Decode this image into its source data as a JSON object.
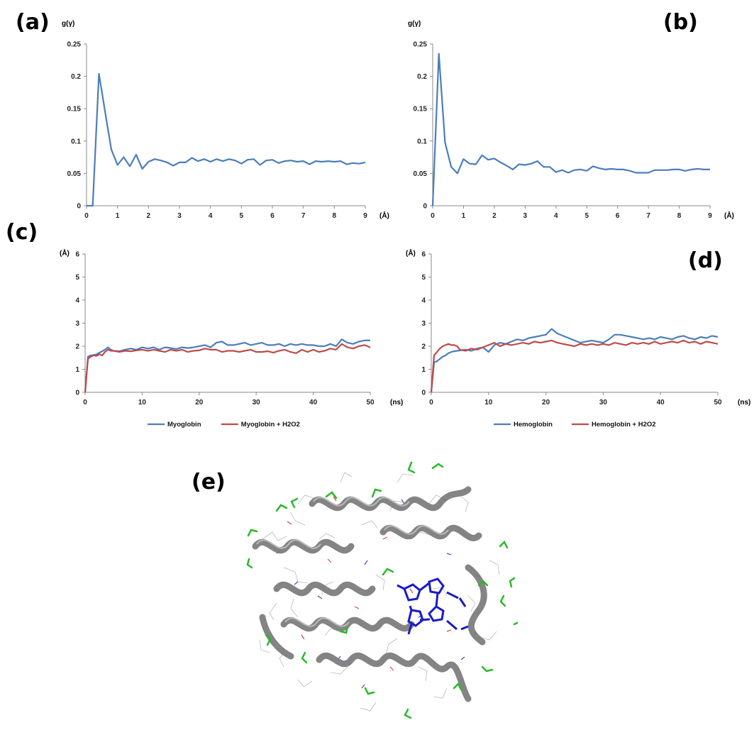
{
  "panels": {
    "a": "(a)",
    "b": "(b)",
    "c": "(c)",
    "d": "(d)",
    "e": "(e)"
  },
  "colors": {
    "blue": "#4a7ebb",
    "red": "#be4b48",
    "axis": "#8a8a8a",
    "helix": "#808080",
    "heme": "#1a1ac8",
    "water": "#2ab82a"
  },
  "chart_data": [
    {
      "id": "a",
      "type": "line",
      "ylabel": "g(γ)",
      "xlabel": "(Å)",
      "xlim": [
        0,
        9
      ],
      "ylim": [
        0,
        0.25
      ],
      "xticks": [
        "0",
        "1",
        "2",
        "3",
        "4",
        "5",
        "6",
        "7",
        "8",
        "9"
      ],
      "yticks": [
        "0",
        "0.05",
        "0.1",
        "0.15",
        "0.2",
        "0.25"
      ],
      "series": [
        {
          "color": "#4a7ebb",
          "x": [
            0,
            0.2,
            0.4,
            0.6,
            0.8,
            1.0,
            1.2,
            1.4,
            1.6,
            1.8,
            2.0,
            2.2,
            2.4,
            2.6,
            2.8,
            3.0,
            3.2,
            3.4,
            3.6,
            3.8,
            4.0,
            4.2,
            4.4,
            4.6,
            4.8,
            5.0,
            5.2,
            5.4,
            5.6,
            5.8,
            6.0,
            6.2,
            6.4,
            6.6,
            6.8,
            7.0,
            7.2,
            7.4,
            7.6,
            7.8,
            8.0,
            8.2,
            8.4,
            8.6,
            8.8,
            9.0
          ],
          "y": [
            0,
            0,
            0.204,
            0.145,
            0.087,
            0.063,
            0.075,
            0.061,
            0.079,
            0.057,
            0.068,
            0.072,
            0.07,
            0.067,
            0.062,
            0.067,
            0.067,
            0.074,
            0.069,
            0.072,
            0.068,
            0.072,
            0.069,
            0.072,
            0.07,
            0.065,
            0.071,
            0.072,
            0.063,
            0.07,
            0.071,
            0.066,
            0.069,
            0.07,
            0.068,
            0.069,
            0.064,
            0.069,
            0.068,
            0.069,
            0.068,
            0.069,
            0.064,
            0.066,
            0.065,
            0.067
          ]
        }
      ]
    },
    {
      "id": "b",
      "type": "line",
      "ylabel": "g(γ)",
      "xlabel": "(Å)",
      "xlim": [
        0,
        9
      ],
      "ylim": [
        0,
        0.25
      ],
      "xticks": [
        "0",
        "1",
        "2",
        "3",
        "4",
        "5",
        "6",
        "7",
        "8",
        "9"
      ],
      "yticks": [
        "0",
        "0.05",
        "0.1",
        "0.15",
        "0.2",
        "0.25"
      ],
      "series": [
        {
          "color": "#4a7ebb",
          "x": [
            0,
            0.2,
            0.4,
            0.6,
            0.8,
            1.0,
            1.2,
            1.4,
            1.6,
            1.8,
            2.0,
            2.2,
            2.4,
            2.6,
            2.8,
            3.0,
            3.2,
            3.4,
            3.6,
            3.8,
            4.0,
            4.2,
            4.4,
            4.6,
            4.8,
            5.0,
            5.2,
            5.4,
            5.6,
            5.8,
            6.0,
            6.2,
            6.4,
            6.6,
            6.8,
            7.0,
            7.2,
            7.4,
            7.6,
            7.8,
            8.0,
            8.2,
            8.4,
            8.6,
            8.8,
            9.0
          ],
          "y": [
            0,
            0.235,
            0.098,
            0.06,
            0.05,
            0.072,
            0.065,
            0.064,
            0.078,
            0.071,
            0.073,
            0.067,
            0.062,
            0.056,
            0.064,
            0.063,
            0.065,
            0.069,
            0.06,
            0.06,
            0.052,
            0.055,
            0.051,
            0.055,
            0.056,
            0.054,
            0.061,
            0.058,
            0.056,
            0.057,
            0.056,
            0.056,
            0.054,
            0.051,
            0.051,
            0.051,
            0.055,
            0.055,
            0.055,
            0.056,
            0.056,
            0.054,
            0.056,
            0.057,
            0.056,
            0.056
          ]
        }
      ]
    },
    {
      "id": "c",
      "type": "line",
      "ylabel": "(Å)",
      "xlabel": "(ns)",
      "xlim": [
        0,
        50
      ],
      "ylim": [
        0,
        6
      ],
      "xticks": [
        "0",
        "10",
        "20",
        "30",
        "40",
        "50"
      ],
      "yticks": [
        "0",
        "1",
        "2",
        "3",
        "4",
        "5",
        "6"
      ],
      "legend": "bottom",
      "series": [
        {
          "name": "Myoglobin",
          "color": "#4a7ebb",
          "x": [
            0,
            0.5,
            1,
            1.5,
            2,
            2.5,
            3,
            3.5,
            4,
            4.5,
            5,
            6,
            7,
            8,
            9,
            10,
            11,
            12,
            13,
            14,
            15,
            16,
            17,
            18,
            19,
            20,
            21,
            22,
            23,
            24,
            25,
            26,
            27,
            28,
            29,
            30,
            31,
            32,
            33,
            34,
            35,
            36,
            37,
            38,
            39,
            40,
            41,
            42,
            43,
            44,
            45,
            46,
            47,
            48,
            49,
            50
          ],
          "y": [
            0,
            1.55,
            1.6,
            1.62,
            1.65,
            1.72,
            1.78,
            1.85,
            1.95,
            1.85,
            1.8,
            1.78,
            1.85,
            1.9,
            1.85,
            1.95,
            1.9,
            1.95,
            1.85,
            1.95,
            1.92,
            1.88,
            1.95,
            1.92,
            1.95,
            2.0,
            2.05,
            1.95,
            2.15,
            2.2,
            2.05,
            2.05,
            2.1,
            2.15,
            2.05,
            2.1,
            2.15,
            2.05,
            2.05,
            2.1,
            2.0,
            2.1,
            2.05,
            2.1,
            2.05,
            2.05,
            2.0,
            2.0,
            2.1,
            2.0,
            2.3,
            2.15,
            2.1,
            2.2,
            2.25,
            2.25
          ]
        },
        {
          "name": "Myoglobin + H2O2",
          "color": "#be4b48",
          "x": [
            0,
            0.5,
            1,
            1.5,
            2,
            2.5,
            3,
            3.5,
            4,
            4.5,
            5,
            6,
            7,
            8,
            9,
            10,
            11,
            12,
            13,
            14,
            15,
            16,
            17,
            18,
            19,
            20,
            21,
            22,
            23,
            24,
            25,
            26,
            27,
            28,
            29,
            30,
            31,
            32,
            33,
            34,
            35,
            36,
            37,
            38,
            39,
            40,
            41,
            42,
            43,
            44,
            45,
            46,
            47,
            48,
            49,
            50
          ],
          "y": [
            0,
            1.45,
            1.55,
            1.6,
            1.58,
            1.65,
            1.6,
            1.75,
            1.85,
            1.8,
            1.8,
            1.75,
            1.8,
            1.78,
            1.82,
            1.85,
            1.8,
            1.85,
            1.8,
            1.75,
            1.85,
            1.8,
            1.85,
            1.75,
            1.8,
            1.82,
            1.9,
            1.85,
            1.85,
            1.75,
            1.8,
            1.8,
            1.75,
            1.8,
            1.85,
            1.75,
            1.75,
            1.78,
            1.72,
            1.8,
            1.85,
            1.75,
            1.7,
            1.85,
            1.75,
            1.85,
            1.75,
            1.8,
            1.9,
            1.85,
            2.1,
            1.95,
            1.9,
            2.0,
            2.05,
            1.95
          ]
        }
      ]
    },
    {
      "id": "d",
      "type": "line",
      "ylabel": "(Å)",
      "xlabel": "(ns)",
      "xlim": [
        0,
        50
      ],
      "ylim": [
        0,
        6
      ],
      "xticks": [
        "0",
        "10",
        "20",
        "30",
        "40",
        "50"
      ],
      "yticks": [
        "0",
        "1",
        "2",
        "3",
        "4",
        "5",
        "6"
      ],
      "legend": "bottom",
      "series": [
        {
          "name": "Hemoglobin",
          "color": "#4a7ebb",
          "x": [
            0,
            0.5,
            1,
            1.5,
            2,
            2.5,
            3,
            3.5,
            4,
            4.5,
            5,
            6,
            7,
            8,
            9,
            10,
            11,
            12,
            13,
            14,
            15,
            16,
            17,
            18,
            19,
            20,
            21,
            22,
            23,
            24,
            25,
            26,
            27,
            28,
            29,
            30,
            31,
            32,
            33,
            34,
            35,
            36,
            37,
            38,
            39,
            40,
            41,
            42,
            43,
            44,
            45,
            46,
            47,
            48,
            49,
            50
          ],
          "y": [
            0,
            1.3,
            1.35,
            1.45,
            1.55,
            1.6,
            1.7,
            1.75,
            1.78,
            1.8,
            1.82,
            1.85,
            1.8,
            1.9,
            1.95,
            1.75,
            2.05,
            2.15,
            2.1,
            2.2,
            2.3,
            2.25,
            2.35,
            2.4,
            2.45,
            2.5,
            2.75,
            2.55,
            2.45,
            2.35,
            2.25,
            2.15,
            2.2,
            2.25,
            2.2,
            2.15,
            2.3,
            2.5,
            2.5,
            2.45,
            2.4,
            2.35,
            2.3,
            2.35,
            2.3,
            2.4,
            2.35,
            2.3,
            2.4,
            2.45,
            2.35,
            2.3,
            2.4,
            2.35,
            2.45,
            2.4
          ]
        },
        {
          "name": "Hemoglobin + H2O2",
          "color": "#be4b48",
          "x": [
            0,
            0.5,
            1,
            1.5,
            2,
            2.5,
            3,
            3.5,
            4,
            4.5,
            5,
            6,
            7,
            8,
            9,
            10,
            11,
            12,
            13,
            14,
            15,
            16,
            17,
            18,
            19,
            20,
            21,
            22,
            23,
            24,
            25,
            26,
            27,
            28,
            29,
            30,
            31,
            32,
            33,
            34,
            35,
            36,
            37,
            38,
            39,
            40,
            41,
            42,
            43,
            44,
            45,
            46,
            47,
            48,
            49,
            50
          ],
          "y": [
            0,
            1.6,
            1.75,
            1.9,
            2.0,
            2.05,
            2.1,
            2.05,
            2.05,
            2.0,
            1.85,
            1.8,
            1.9,
            1.85,
            1.95,
            2.05,
            2.15,
            2.0,
            2.1,
            2.05,
            2.1,
            2.15,
            2.1,
            2.2,
            2.15,
            2.2,
            2.25,
            2.15,
            2.1,
            2.05,
            2.0,
            2.1,
            2.05,
            2.1,
            2.05,
            2.1,
            2.05,
            2.15,
            2.1,
            2.05,
            2.15,
            2.1,
            2.15,
            2.1,
            2.2,
            2.1,
            2.15,
            2.2,
            2.15,
            2.25,
            2.15,
            2.2,
            2.1,
            2.2,
            2.15,
            2.1
          ]
        }
      ]
    }
  ]
}
